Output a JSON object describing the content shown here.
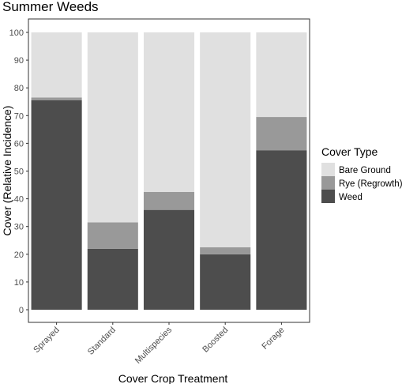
{
  "chart_data": {
    "type": "bar",
    "stacked": true,
    "title": "Summer Weeds",
    "xlabel": "Cover Crop Treatment",
    "ylabel": "Cover (Relative Incidence)",
    "ylim": [
      0,
      100
    ],
    "yticks": [
      0,
      10,
      20,
      30,
      40,
      50,
      60,
      70,
      80,
      90,
      100
    ],
    "grid": false,
    "categories": [
      "Sprayed",
      "Standard",
      "Multispecies",
      "Boosted",
      "Forage"
    ],
    "series": [
      {
        "name": "Weed",
        "color": "#4d4d4d",
        "values": [
          75.5,
          22,
          36,
          20,
          57.5
        ]
      },
      {
        "name": "Rye (Regrowth)",
        "color": "#999999",
        "values": [
          1,
          9.5,
          6.5,
          2.5,
          12
        ]
      },
      {
        "name": "Bare Ground",
        "color": "#e0e0e0",
        "values": [
          23.5,
          68.5,
          57.5,
          77.5,
          30.5
        ]
      }
    ],
    "legend": {
      "title": "Cover Type",
      "position": "right",
      "items": [
        "Bare Ground",
        "Rye (Regrowth)",
        "Weed"
      ]
    }
  }
}
